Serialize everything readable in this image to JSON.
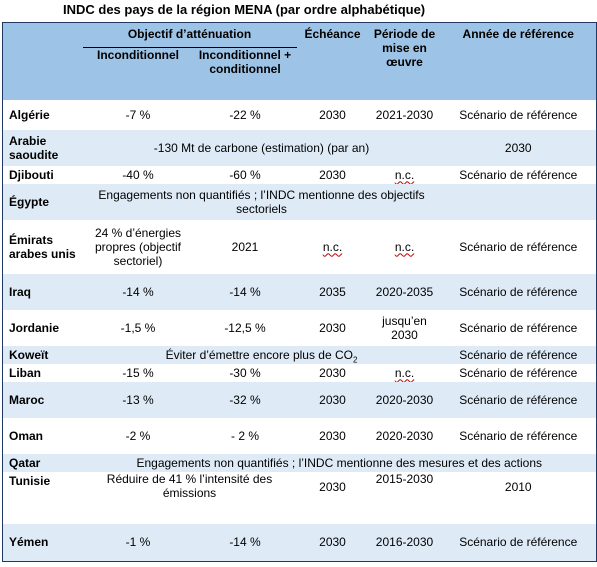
{
  "title": "INDC des pays de la région MENA (par ordre alphabétique)",
  "headers": {
    "objectif": "Objectif d’atténuation",
    "inconditionnel": "Inconditionnel",
    "inconditionnel_conditionnel": "Inconditionnel + conditionnel",
    "echeance": "Échéance",
    "periode": "Période de mise en œuvre",
    "annee_reference": "Année de référence"
  },
  "rows": [
    {
      "country": "Algérie",
      "uncond": "-7 %",
      "cond": "-22 %",
      "deadline": "2030",
      "period": "2021-2030",
      "reference": "Scénario de référence"
    },
    {
      "country": "Arabie saoudite",
      "span": "-130 Mt de carbone (estimation) (par an)",
      "reference": "2030"
    },
    {
      "country": "Djibouti",
      "uncond": "-40 %",
      "cond": "-60 %",
      "deadline": "2030",
      "period": "n.c.",
      "reference": "Scénario de référence"
    },
    {
      "country": "Égypte",
      "span": "Engagements non quantifiés ; l’INDC mentionne des objectifs sectoriels"
    },
    {
      "country": "Émirats arabes unis",
      "uncond": "24 % d’énergies propres (objectif sectoriel)",
      "cond": "2021",
      "deadline": "n.c.",
      "period": "n.c.",
      "reference": "Scénario de référence"
    },
    {
      "country": "Iraq",
      "uncond": "-14 %",
      "cond": "-14 %",
      "deadline": "2035",
      "period": "2020-2035",
      "reference": "Scénario de référence"
    },
    {
      "country": "Jordanie",
      "uncond": "-1,5 %",
      "cond": "-12,5 %",
      "deadline": "2030",
      "period": "jusqu’en 2030",
      "reference": "Scénario de référence"
    },
    {
      "country": "Koweït",
      "span_prefix": "Éviter d’émettre encore plus de CO",
      "span_sub": "2",
      "reference": "Scénario de référence"
    },
    {
      "country": "Liban",
      "uncond": "-15 %",
      "cond": "-30 %",
      "deadline": "2030",
      "period": "n.c.",
      "reference": "Scénario de référence"
    },
    {
      "country": "Maroc",
      "uncond": "-13 %",
      "cond": "-32 %",
      "deadline": "2030",
      "period": "2020-2030",
      "reference": "Scénario de référence"
    },
    {
      "country": "Oman",
      "uncond": "-2 %",
      "cond": "- 2 %",
      "deadline": "2030",
      "period": "2020-2030",
      "reference": "Scénario de référence"
    },
    {
      "country": "Qatar",
      "span": "Engagements non quantifiés ; l’INDC mentionne des mesures et des actions"
    },
    {
      "country": "Tunisie",
      "span": "Réduire de 41 % l’intensité des émissions",
      "deadline": "2030",
      "period": "2015-2030",
      "reference": "2010"
    },
    {
      "country": "Yémen",
      "uncond": "-1 %",
      "cond": "-14 %",
      "deadline": "2030",
      "period": "2016-2030",
      "reference": "Scénario de référence"
    }
  ]
}
